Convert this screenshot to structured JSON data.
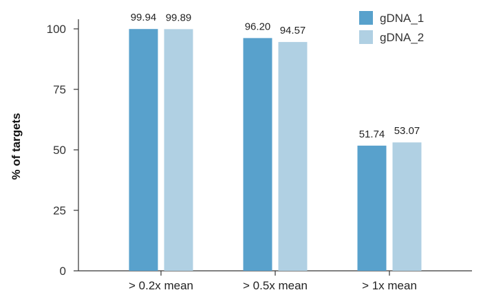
{
  "chart_data": {
    "type": "bar",
    "categories": [
      "> 0.2x mean",
      "> 0.5x mean",
      "> 1x mean"
    ],
    "series": [
      {
        "name": "gDNA_1",
        "values": [
          99.94,
          96.2,
          51.74
        ],
        "labels": [
          "99.94",
          "96.20",
          "51.74"
        ],
        "color": "#58A1CC"
      },
      {
        "name": "gDNA_2",
        "values": [
          99.89,
          94.57,
          53.07
        ],
        "labels": [
          "99.89",
          "94.57",
          "53.07"
        ],
        "color": "#B0D0E3"
      }
    ],
    "xlabel": "",
    "ylabel": "% of targets",
    "ylim": [
      0,
      100
    ],
    "yticks": [
      "0",
      "25",
      "50",
      "75",
      "100"
    ],
    "grid": false,
    "legend_position": "top-right"
  }
}
